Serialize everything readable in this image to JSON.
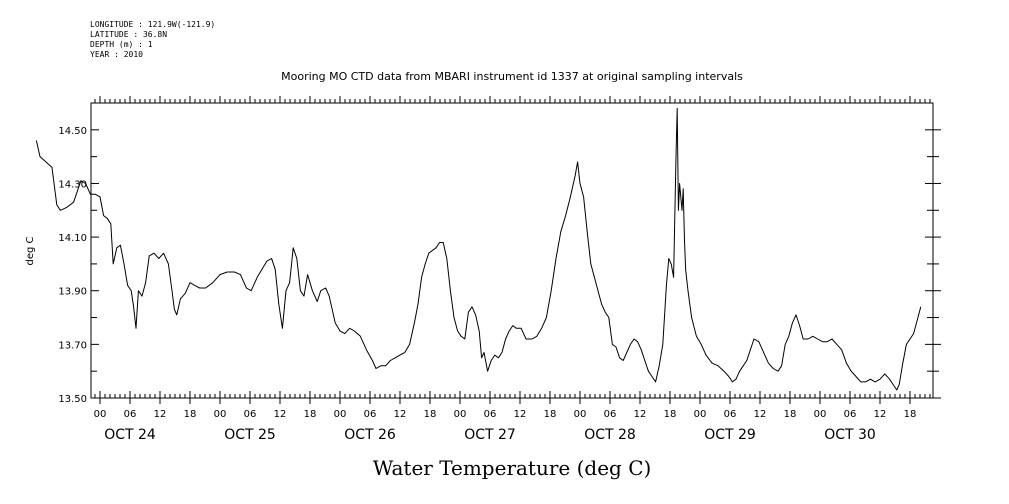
{
  "meta": {
    "longitude": "LONGITUDE : 121.9W(-121.9)",
    "latitude": "LATITUDE : 36.8N",
    "depth": "DEPTH (m) : 1",
    "year": "YEAR : 2010"
  },
  "chart_data": {
    "type": "line",
    "title": "Mooring MO CTD data from MBARI instrument id 1337 at original sampling intervals",
    "xlabel": "Water Temperature (deg C)",
    "ylabel": "deg C",
    "grid": false,
    "ylim": [
      13.5,
      14.6
    ],
    "xlim": [
      -0.6,
      6.85
    ],
    "y_ticks": [
      13.5,
      13.6,
      13.7,
      13.8,
      13.9,
      14.0,
      14.1,
      14.2,
      14.3,
      14.4,
      14.5
    ],
    "y_tick_labels": [
      "13.50",
      "",
      "13.70",
      "",
      "13.90",
      "",
      "14.10",
      "",
      "14.30",
      "",
      "14.50"
    ],
    "hour_tick_labels": [
      "00",
      "06",
      "12",
      "18"
    ],
    "day_labels": [
      "OCT 24",
      "OCT 25",
      "OCT 26",
      "OCT 27",
      "OCT 28",
      "OCT 29",
      "OCT 30"
    ],
    "x_units": "days from OCT 24 00:00",
    "series": [
      {
        "name": "",
        "points": [
          [
            -0.53,
            14.46
          ],
          [
            -0.5,
            14.4
          ],
          [
            -0.45,
            14.38
          ],
          [
            -0.4,
            14.36
          ],
          [
            -0.36,
            14.22
          ],
          [
            -0.33,
            14.2
          ],
          [
            -0.28,
            14.21
          ],
          [
            -0.22,
            14.23
          ],
          [
            -0.19,
            14.27
          ],
          [
            -0.16,
            14.31
          ],
          [
            -0.12,
            14.3
          ],
          [
            -0.08,
            14.26
          ],
          [
            -0.04,
            14.26
          ],
          [
            0.0,
            14.25
          ],
          [
            0.03,
            14.18
          ],
          [
            0.06,
            14.17
          ],
          [
            0.09,
            14.15
          ],
          [
            0.11,
            14.0
          ],
          [
            0.14,
            14.06
          ],
          [
            0.17,
            14.07
          ],
          [
            0.2,
            14.0
          ],
          [
            0.23,
            13.92
          ],
          [
            0.26,
            13.9
          ],
          [
            0.28,
            13.84
          ],
          [
            0.3,
            13.76
          ],
          [
            0.32,
            13.9
          ],
          [
            0.35,
            13.88
          ],
          [
            0.38,
            13.93
          ],
          [
            0.41,
            14.03
          ],
          [
            0.45,
            14.04
          ],
          [
            0.49,
            14.02
          ],
          [
            0.53,
            14.04
          ],
          [
            0.57,
            14.0
          ],
          [
            0.6,
            13.9
          ],
          [
            0.62,
            13.83
          ],
          [
            0.64,
            13.81
          ],
          [
            0.67,
            13.87
          ],
          [
            0.71,
            13.89
          ],
          [
            0.75,
            13.93
          ],
          [
            0.79,
            13.92
          ],
          [
            0.83,
            13.91
          ],
          [
            0.88,
            13.91
          ],
          [
            0.94,
            13.93
          ],
          [
            1.0,
            13.96
          ],
          [
            1.06,
            13.97
          ],
          [
            1.12,
            13.97
          ],
          [
            1.17,
            13.96
          ],
          [
            1.22,
            13.91
          ],
          [
            1.26,
            13.9
          ],
          [
            1.31,
            13.95
          ],
          [
            1.35,
            13.98
          ],
          [
            1.39,
            14.01
          ],
          [
            1.43,
            14.02
          ],
          [
            1.46,
            13.98
          ],
          [
            1.49,
            13.85
          ],
          [
            1.52,
            13.76
          ],
          [
            1.55,
            13.9
          ],
          [
            1.58,
            13.93
          ],
          [
            1.61,
            14.06
          ],
          [
            1.64,
            14.02
          ],
          [
            1.67,
            13.9
          ],
          [
            1.7,
            13.88
          ],
          [
            1.73,
            13.96
          ],
          [
            1.77,
            13.9
          ],
          [
            1.81,
            13.86
          ],
          [
            1.84,
            13.9
          ],
          [
            1.88,
            13.91
          ],
          [
            1.91,
            13.88
          ],
          [
            1.93,
            13.84
          ],
          [
            1.96,
            13.78
          ],
          [
            2.0,
            13.75
          ],
          [
            2.04,
            13.74
          ],
          [
            2.08,
            13.76
          ],
          [
            2.12,
            13.75
          ],
          [
            2.17,
            13.73
          ],
          [
            2.22,
            13.68
          ],
          [
            2.27,
            13.64
          ],
          [
            2.3,
            13.61
          ],
          [
            2.34,
            13.62
          ],
          [
            2.38,
            13.62
          ],
          [
            2.42,
            13.64
          ],
          [
            2.46,
            13.65
          ],
          [
            2.5,
            13.66
          ],
          [
            2.54,
            13.67
          ],
          [
            2.58,
            13.7
          ],
          [
            2.62,
            13.78
          ],
          [
            2.65,
            13.85
          ],
          [
            2.68,
            13.95
          ],
          [
            2.71,
            14.0
          ],
          [
            2.74,
            14.04
          ],
          [
            2.77,
            14.05
          ],
          [
            2.8,
            14.06
          ],
          [
            2.83,
            14.08
          ],
          [
            2.86,
            14.08
          ],
          [
            2.89,
            14.02
          ],
          [
            2.92,
            13.9
          ],
          [
            2.95,
            13.8
          ],
          [
            2.98,
            13.75
          ],
          [
            3.01,
            13.73
          ],
          [
            3.04,
            13.72
          ],
          [
            3.07,
            13.82
          ],
          [
            3.1,
            13.84
          ],
          [
            3.13,
            13.81
          ],
          [
            3.16,
            13.75
          ],
          [
            3.18,
            13.65
          ],
          [
            3.2,
            13.67
          ],
          [
            3.23,
            13.6
          ],
          [
            3.26,
            13.64
          ],
          [
            3.29,
            13.66
          ],
          [
            3.32,
            13.65
          ],
          [
            3.35,
            13.67
          ],
          [
            3.38,
            13.72
          ],
          [
            3.41,
            13.75
          ],
          [
            3.44,
            13.77
          ],
          [
            3.47,
            13.76
          ],
          [
            3.51,
            13.76
          ],
          [
            3.55,
            13.72
          ],
          [
            3.6,
            13.72
          ],
          [
            3.64,
            13.73
          ],
          [
            3.68,
            13.76
          ],
          [
            3.72,
            13.8
          ],
          [
            3.76,
            13.9
          ],
          [
            3.8,
            14.02
          ],
          [
            3.84,
            14.12
          ],
          [
            3.88,
            14.18
          ],
          [
            3.92,
            14.25
          ],
          [
            3.96,
            14.33
          ],
          [
            3.98,
            14.38
          ],
          [
            4.0,
            14.3
          ],
          [
            4.03,
            14.25
          ],
          [
            4.06,
            14.12
          ],
          [
            4.09,
            14.0
          ],
          [
            4.12,
            13.95
          ],
          [
            4.15,
            13.9
          ],
          [
            4.18,
            13.85
          ],
          [
            4.21,
            13.82
          ],
          [
            4.24,
            13.8
          ],
          [
            4.27,
            13.7
          ],
          [
            4.3,
            13.69
          ],
          [
            4.33,
            13.65
          ],
          [
            4.36,
            13.64
          ],
          [
            4.39,
            13.67
          ],
          [
            4.42,
            13.7
          ],
          [
            4.45,
            13.72
          ],
          [
            4.48,
            13.71
          ],
          [
            4.51,
            13.68
          ],
          [
            4.54,
            13.64
          ],
          [
            4.57,
            13.6
          ],
          [
            4.6,
            13.58
          ],
          [
            4.63,
            13.56
          ],
          [
            4.66,
            13.62
          ],
          [
            4.69,
            13.7
          ],
          [
            4.72,
            13.92
          ],
          [
            4.74,
            14.02
          ],
          [
            4.76,
            14.0
          ],
          [
            4.78,
            13.95
          ],
          [
            4.8,
            14.4
          ],
          [
            4.81,
            14.58
          ],
          [
            4.82,
            14.2
          ],
          [
            4.83,
            14.3
          ],
          [
            4.84,
            14.25
          ],
          [
            4.85,
            14.2
          ],
          [
            4.86,
            14.28
          ],
          [
            4.87,
            14.1
          ],
          [
            4.88,
            13.98
          ],
          [
            4.9,
            13.9
          ],
          [
            4.93,
            13.8
          ],
          [
            4.97,
            13.73
          ],
          [
            5.01,
            13.7
          ],
          [
            5.05,
            13.66
          ],
          [
            5.1,
            13.63
          ],
          [
            5.15,
            13.62
          ],
          [
            5.2,
            13.6
          ],
          [
            5.24,
            13.58
          ],
          [
            5.27,
            13.56
          ],
          [
            5.3,
            13.57
          ],
          [
            5.33,
            13.6
          ],
          [
            5.36,
            13.62
          ],
          [
            5.39,
            13.64
          ],
          [
            5.42,
            13.68
          ],
          [
            5.45,
            13.72
          ],
          [
            5.49,
            13.71
          ],
          [
            5.53,
            13.67
          ],
          [
            5.57,
            13.63
          ],
          [
            5.61,
            13.61
          ],
          [
            5.65,
            13.6
          ],
          [
            5.68,
            13.62
          ],
          [
            5.71,
            13.7
          ],
          [
            5.74,
            13.73
          ],
          [
            5.77,
            13.78
          ],
          [
            5.8,
            13.81
          ],
          [
            5.83,
            13.77
          ],
          [
            5.86,
            13.72
          ],
          [
            5.9,
            13.72
          ],
          [
            5.94,
            13.73
          ],
          [
            5.98,
            13.72
          ],
          [
            6.02,
            13.71
          ],
          [
            6.06,
            13.71
          ],
          [
            6.1,
            13.72
          ],
          [
            6.14,
            13.7
          ],
          [
            6.18,
            13.68
          ],
          [
            6.22,
            13.63
          ],
          [
            6.26,
            13.6
          ],
          [
            6.3,
            13.58
          ],
          [
            6.34,
            13.56
          ],
          [
            6.38,
            13.56
          ],
          [
            6.42,
            13.57
          ],
          [
            6.46,
            13.56
          ],
          [
            6.5,
            13.57
          ],
          [
            6.54,
            13.59
          ],
          [
            6.58,
            13.57
          ],
          [
            6.61,
            13.55
          ],
          [
            6.64,
            13.53
          ],
          [
            6.66,
            13.55
          ],
          [
            6.69,
            13.63
          ],
          [
            6.72,
            13.7
          ],
          [
            6.75,
            13.72
          ],
          [
            6.78,
            13.74
          ],
          [
            6.81,
            13.79
          ],
          [
            6.84,
            13.84
          ]
        ]
      }
    ]
  }
}
